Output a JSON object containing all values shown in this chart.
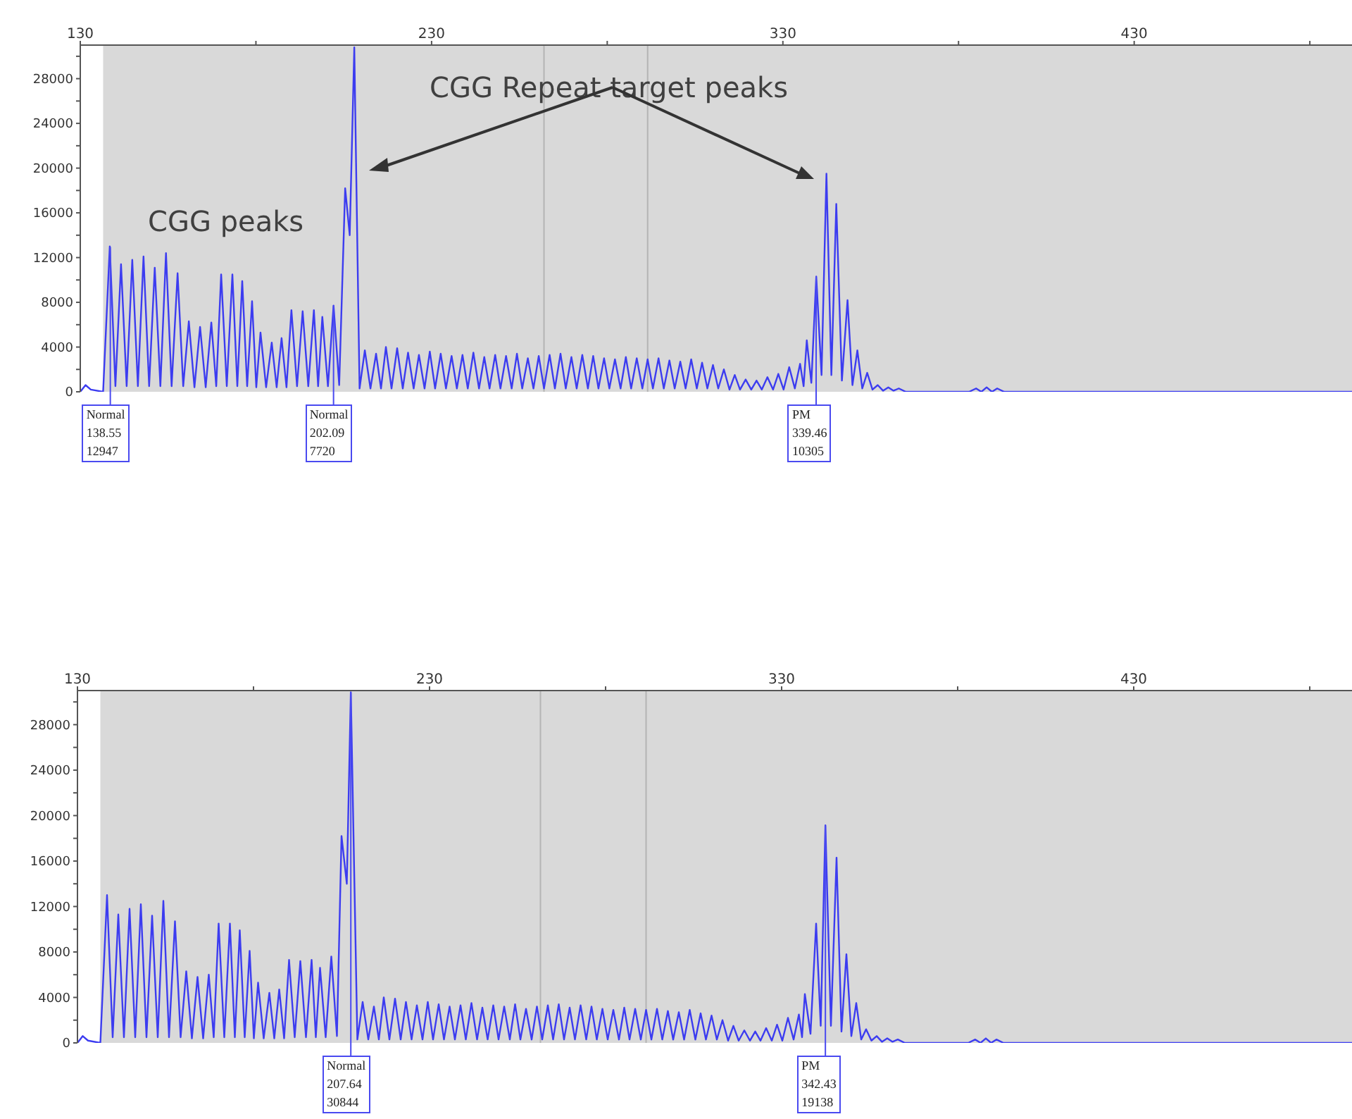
{
  "chart_data": [
    {
      "type": "line",
      "marker": "none",
      "line_style": "solid",
      "xlim": [
        130,
        492
      ],
      "xticks": [
        130,
        {
          "value": 180,
          "label": null
        },
        230,
        {
          "value": 280,
          "label": null
        },
        330,
        {
          "value": 380,
          "label": null
        },
        430,
        {
          "value": 480,
          "label": null
        }
      ],
      "ylim": [
        0,
        31000
      ],
      "yticks": [
        0,
        {
          "value": 2000,
          "label": null
        },
        4000,
        {
          "value": 6000,
          "label": null
        },
        8000,
        {
          "value": 10000,
          "label": null
        },
        12000,
        {
          "value": 14000,
          "label": null
        },
        16000,
        {
          "value": 18000,
          "label": null
        },
        20000,
        {
          "value": 22000,
          "label": null
        },
        24000,
        {
          "value": 26000,
          "label": null
        },
        28000,
        {
          "value": 30000,
          "label": null
        }
      ],
      "bands": [
        {
          "axis": "x",
          "from": 136.5,
          "to": 492,
          "color": "#d9d9d9"
        }
      ],
      "ref_lines": [
        {
          "axis": "x",
          "value": 262,
          "color": "#b4b4b4"
        },
        {
          "axis": "x",
          "value": 291.5,
          "color": "#b4b4b4"
        }
      ],
      "annotations": [
        "CGG peaks",
        "CGG Repeat target peaks",
        {
          "text": "Normal\n138.55\n12947",
          "x": 138.55,
          "y": 12947
        },
        {
          "text": "Normal\n202.09\n7720",
          "x": 202.09,
          "y": 7720
        },
        {
          "text": "PM\n339.46\n10305",
          "x": 339.46,
          "y": 10305
        }
      ],
      "series": [
        {
          "color": "#3c3cf0",
          "x": [
            130,
            131.5,
            133,
            136.5,
            138.4,
            140,
            141.6,
            143.2,
            144.8,
            146.4,
            148,
            149.6,
            151.2,
            152.8,
            154.4,
            156,
            157.7,
            159.3,
            160.9,
            162.5,
            164.1,
            165.7,
            167.3,
            168.7,
            170.1,
            171.7,
            173.3,
            174.7,
            176.1,
            177.5,
            178.9,
            180.1,
            181.3,
            182.9,
            184.5,
            185.9,
            187.3,
            188.7,
            190.1,
            191.7,
            193.3,
            194.9,
            196.5,
            197.7,
            198.9,
            200.5,
            202.1,
            203.7,
            205.4,
            206.7,
            208,
            209.5,
            211,
            212.6,
            214.2,
            215.6,
            217,
            218.6,
            220.2,
            221.8,
            223.3,
            224.9,
            226.4,
            228,
            229.5,
            231,
            232.6,
            234.1,
            235.7,
            237.2,
            238.8,
            240.3,
            241.9,
            243.5,
            245,
            246.5,
            248.1,
            249.6,
            251.2,
            252.8,
            254.3,
            255.8,
            257.4,
            259,
            260.5,
            262,
            263.6,
            265.1,
            266.7,
            268.2,
            269.8,
            271.3,
            272.9,
            274.5,
            276,
            277.5,
            279.1,
            280.6,
            282.2,
            283.8,
            285.3,
            286.8,
            288.4,
            290,
            291.5,
            293,
            294.6,
            296.1,
            297.7,
            299.2,
            300.8,
            302.3,
            303.9,
            305.5,
            307,
            308.5,
            310.1,
            311.6,
            313.2,
            314.8,
            316.3,
            317.8,
            319.4,
            321,
            322.5,
            324,
            325.6,
            327.2,
            328.7,
            330.2,
            331.8,
            333.4,
            334.9,
            335.9,
            336.8,
            338.1,
            339.5,
            341,
            342.4,
            343.8,
            345.2,
            346.8,
            348.4,
            349.8,
            351.2,
            352.6,
            354,
            355.5,
            357,
            358.5,
            360,
            361.5,
            363,
            365,
            383,
            385,
            386.5,
            388,
            389.5,
            391,
            393,
            492
          ],
          "values": [
            0,
            600,
            200,
            0,
            13000,
            500,
            11400,
            500,
            11800,
            500,
            12100,
            500,
            11100,
            500,
            12400,
            500,
            10600,
            500,
            6300,
            400,
            5800,
            400,
            6200,
            500,
            10500,
            500,
            10500,
            500,
            9900,
            500,
            8100,
            400,
            5300,
            400,
            4400,
            400,
            4800,
            400,
            7300,
            500,
            7200,
            500,
            7300,
            500,
            6700,
            500,
            7700,
            600,
            18200,
            14000,
            30800,
            300,
            3700,
            300,
            3400,
            300,
            4000,
            300,
            3900,
            300,
            3500,
            300,
            3300,
            300,
            3600,
            300,
            3400,
            300,
            3200,
            300,
            3300,
            300,
            3500,
            300,
            3100,
            300,
            3300,
            300,
            3200,
            300,
            3400,
            300,
            3000,
            300,
            3200,
            300,
            3300,
            300,
            3400,
            300,
            3100,
            300,
            3300,
            300,
            3200,
            300,
            3000,
            300,
            2900,
            300,
            3100,
            300,
            3000,
            300,
            2900,
            300,
            3000,
            300,
            2800,
            300,
            2700,
            300,
            2900,
            300,
            2600,
            300,
            2400,
            300,
            2000,
            200,
            1500,
            200,
            1100,
            200,
            1000,
            200,
            1300,
            200,
            1600,
            200,
            2200,
            300,
            2500,
            500,
            4600,
            800,
            10305,
            1500,
            19500,
            1500,
            16800,
            1000,
            8200,
            600,
            3700,
            300,
            1700,
            200,
            600,
            100,
            400,
            100,
            300,
            0,
            0,
            300,
            0,
            400,
            0,
            300,
            0,
            0
          ]
        }
      ]
    },
    {
      "type": "line",
      "marker": "none",
      "line_style": "solid",
      "xlim": [
        130,
        492
      ],
      "xticks": [
        130,
        {
          "value": 180,
          "label": null
        },
        230,
        {
          "value": 280,
          "label": null
        },
        330,
        {
          "value": 380,
          "label": null
        },
        430,
        {
          "value": 480,
          "label": null
        }
      ],
      "ylim": [
        0,
        31000
      ],
      "yticks": [
        0,
        {
          "value": 2000,
          "label": null
        },
        4000,
        {
          "value": 6000,
          "label": null
        },
        8000,
        {
          "value": 10000,
          "label": null
        },
        12000,
        {
          "value": 14000,
          "label": null
        },
        16000,
        {
          "value": 18000,
          "label": null
        },
        20000,
        {
          "value": 22000,
          "label": null
        },
        24000,
        {
          "value": 26000,
          "label": null
        },
        28000,
        {
          "value": 30000,
          "label": null
        }
      ],
      "bands": [
        {
          "axis": "x",
          "from": 136.5,
          "to": 492,
          "color": "#d9d9d9"
        }
      ],
      "ref_lines": [
        {
          "axis": "x",
          "value": 261.5,
          "color": "#b4b4b4"
        },
        {
          "axis": "x",
          "value": 291.5,
          "color": "#b4b4b4"
        }
      ],
      "annotations": [
        {
          "text": "Normal\n207.64\n30844",
          "x": 207.64,
          "y": 30844
        },
        {
          "text": "PM\n342.43\n19138",
          "x": 342.43,
          "y": 19138
        }
      ],
      "series": [
        {
          "color": "#3c3cf0",
          "x": [
            130,
            131.5,
            133,
            136.5,
            138.4,
            140,
            141.6,
            143.2,
            144.8,
            146.4,
            148,
            149.6,
            151.2,
            152.8,
            154.4,
            156,
            157.7,
            159.3,
            160.9,
            162.5,
            164.1,
            165.7,
            167.3,
            168.7,
            170.1,
            171.7,
            173.3,
            174.7,
            176.1,
            177.5,
            178.9,
            180.1,
            181.3,
            182.9,
            184.5,
            185.9,
            187.3,
            188.7,
            190.1,
            191.7,
            193.3,
            194.9,
            196.5,
            197.7,
            198.9,
            200.5,
            202.1,
            203.7,
            205,
            206.5,
            207.64,
            209.5,
            211,
            212.6,
            214.2,
            215.6,
            217,
            218.6,
            220.2,
            221.8,
            223.3,
            224.9,
            226.4,
            228,
            229.5,
            231,
            232.6,
            234.1,
            235.7,
            237.2,
            238.8,
            240.3,
            241.9,
            243.5,
            245,
            246.5,
            248.1,
            249.6,
            251.2,
            252.8,
            254.3,
            255.8,
            257.4,
            259,
            260.5,
            262,
            263.6,
            265.1,
            266.7,
            268.2,
            269.8,
            271.3,
            272.9,
            274.5,
            276,
            277.5,
            279.1,
            280.6,
            282.2,
            283.8,
            285.3,
            286.8,
            288.4,
            290,
            291.5,
            293,
            294.6,
            296.1,
            297.7,
            299.2,
            300.8,
            302.3,
            303.9,
            305.5,
            307,
            308.5,
            310.1,
            311.6,
            313.2,
            314.8,
            316.3,
            317.8,
            319.4,
            321,
            322.5,
            324,
            325.6,
            327.2,
            328.7,
            330.2,
            331.8,
            333.4,
            334.9,
            335.8,
            336.6,
            338.2,
            339.8,
            341.1,
            342.43,
            344,
            345.6,
            347,
            348.4,
            349.8,
            351.2,
            352.6,
            354,
            355.5,
            357,
            358.5,
            360,
            361.5,
            363,
            365,
            383,
            385,
            386.5,
            388,
            389.5,
            391,
            393,
            492
          ],
          "values": [
            0,
            600,
            200,
            0,
            13000,
            500,
            11300,
            500,
            11800,
            500,
            12200,
            500,
            11200,
            500,
            12500,
            500,
            10700,
            500,
            6300,
            400,
            5800,
            400,
            6000,
            500,
            10500,
            500,
            10500,
            500,
            9900,
            500,
            8100,
            400,
            5300,
            400,
            4400,
            400,
            4700,
            400,
            7300,
            500,
            7200,
            500,
            7300,
            500,
            6600,
            500,
            7600,
            600,
            18200,
            14000,
            30844,
            300,
            3600,
            300,
            3200,
            300,
            4000,
            300,
            3900,
            300,
            3600,
            300,
            3300,
            300,
            3600,
            300,
            3400,
            300,
            3200,
            300,
            3300,
            300,
            3500,
            300,
            3100,
            300,
            3300,
            300,
            3200,
            300,
            3400,
            300,
            3000,
            300,
            3200,
            300,
            3300,
            300,
            3400,
            300,
            3100,
            300,
            3300,
            300,
            3200,
            300,
            3000,
            300,
            2900,
            300,
            3100,
            300,
            3000,
            300,
            2900,
            300,
            3000,
            300,
            2800,
            300,
            2700,
            300,
            2900,
            300,
            2600,
            300,
            2400,
            300,
            2000,
            200,
            1500,
            200,
            1100,
            200,
            1000,
            200,
            1300,
            200,
            1600,
            200,
            2200,
            300,
            2500,
            500,
            4300,
            800,
            10500,
            1500,
            19138,
            1500,
            16300,
            1000,
            7800,
            600,
            3500,
            300,
            1200,
            200,
            600,
            100,
            400,
            100,
            300,
            0,
            0,
            300,
            0,
            400,
            0,
            300,
            0,
            0
          ]
        }
      ]
    }
  ]
}
